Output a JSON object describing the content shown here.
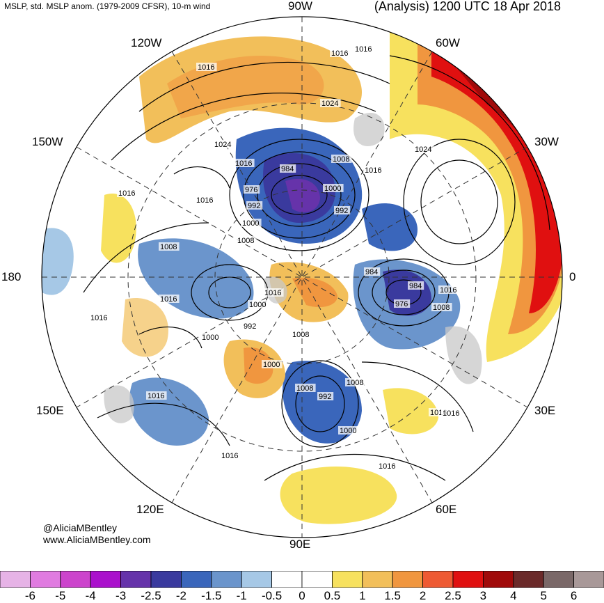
{
  "header": {
    "left_title": "MSLP, std. MSLP anom. (1979-2009 CFSR), 10-m wind",
    "right_title": "(Analysis) 1200 UTC 18 Apr 2018"
  },
  "longitude_labels": {
    "lon_90w": "90W",
    "lon_120w": "120W",
    "lon_60w": "60W",
    "lon_150w": "150W",
    "lon_30w": "30W",
    "lon_180": "180",
    "lon_0": "0",
    "lon_150e": "150E",
    "lon_30e": "30E",
    "lon_120e": "120E",
    "lon_60e": "60E",
    "lon_90e": "90E"
  },
  "isobar_labels": [
    "1016",
    "1016",
    "1016",
    "1024",
    "1024",
    "1016",
    "984",
    "1008",
    "1016",
    "1024",
    "1016",
    "976",
    "1000",
    "992",
    "1016",
    "992",
    "1000",
    "1008",
    "1008",
    "1000",
    "984",
    "984",
    "976",
    "1016",
    "1008",
    "1016",
    "1016",
    "1000",
    "992",
    "1008",
    "1000",
    "1008",
    "1008",
    "992",
    "1000",
    "1016",
    "1016",
    "1016",
    "1016",
    "1016",
    "1016"
  ],
  "credit": {
    "handle": "@AliciaMBentley",
    "site": "www.AliciaMBentley.com"
  },
  "colorbar": {
    "labels": [
      "-6",
      "-5",
      "-4",
      "-3",
      "-2.5",
      "-2",
      "-1.5",
      "-1",
      "-0.5",
      "0",
      "0.5",
      "1",
      "1.5",
      "2",
      "2.5",
      "3",
      "4",
      "5",
      "6"
    ],
    "colors": [
      "#e6b3e6",
      "#e07be0",
      "#cc44cc",
      "#aa11cc",
      "#6633aa",
      "#3a3a9e",
      "#3a66bb",
      "#6b95cc",
      "#a6c8e6",
      "#ffffff",
      "#ffffff",
      "#f7e15e",
      "#f2bf5a",
      "#f0963f",
      "#ee5a33",
      "#e01010",
      "#a00a0a",
      "#6b2a2a",
      "#7a6868",
      "#a89898"
    ]
  }
}
